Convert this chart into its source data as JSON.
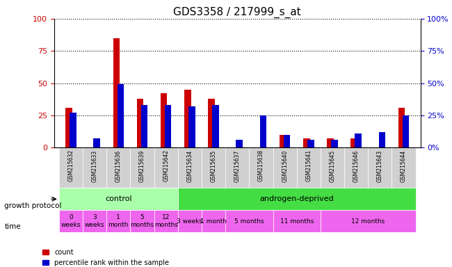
{
  "title": "GDS3358 / 217999_s_at",
  "samples": [
    "GSM215632",
    "GSM215633",
    "GSM215636",
    "GSM215639",
    "GSM215642",
    "GSM215634",
    "GSM215635",
    "GSM215637",
    "GSM215638",
    "GSM215640",
    "GSM215641",
    "GSM215645",
    "GSM215646",
    "GSM215643",
    "GSM215644"
  ],
  "count_values": [
    31,
    0,
    85,
    38,
    42,
    45,
    38,
    0,
    0,
    10,
    7,
    7,
    7,
    0,
    31
  ],
  "percentile_values": [
    27,
    7,
    49,
    33,
    33,
    32,
    33,
    6,
    25,
    10,
    6,
    6,
    11,
    12,
    25
  ],
  "ylim": [
    0,
    100
  ],
  "yticks": [
    0,
    25,
    50,
    75,
    100
  ],
  "bar_color_count": "#cc0000",
  "bar_color_pct": "#0000cc",
  "grid_color": "black",
  "grid_style": "dotted",
  "background_color": "#ffffff",
  "title_fontsize": 11,
  "control_indices": [
    0,
    1,
    2,
    3,
    4
  ],
  "androgen_indices": [
    5,
    6,
    7,
    8,
    9,
    10,
    11,
    12,
    13,
    14
  ],
  "control_label": "control",
  "androgen_label": "androgen-deprived",
  "control_color": "#aaffaa",
  "androgen_color": "#44dd44",
  "time_color": "#ee66ee",
  "time_rows": [
    {
      "label": "0\nweeks",
      "span": [
        0,
        0
      ]
    },
    {
      "label": "3\nweeks",
      "span": [
        1,
        1
      ]
    },
    {
      "label": "1\nmonth",
      "span": [
        2,
        2
      ]
    },
    {
      "label": "5\nmonths",
      "span": [
        3,
        3
      ]
    },
    {
      "label": "12\nmonths",
      "span": [
        4,
        4
      ]
    },
    {
      "label": "3 weeks",
      "span": [
        5,
        5
      ]
    },
    {
      "label": "1 month",
      "span": [
        6,
        6
      ]
    },
    {
      "label": "5 months",
      "span": [
        7,
        8
      ]
    },
    {
      "label": "11 months",
      "span": [
        9,
        10
      ]
    },
    {
      "label": "12 months",
      "span": [
        11,
        14
      ]
    }
  ],
  "xlabel_color": "#888888",
  "tick_label_color": "#cc0000",
  "right_tick_color": "#0000cc",
  "growth_protocol_label": "growth protocol",
  "time_label": "time",
  "legend_count": "count",
  "legend_pct": "percentile rank within the sample"
}
